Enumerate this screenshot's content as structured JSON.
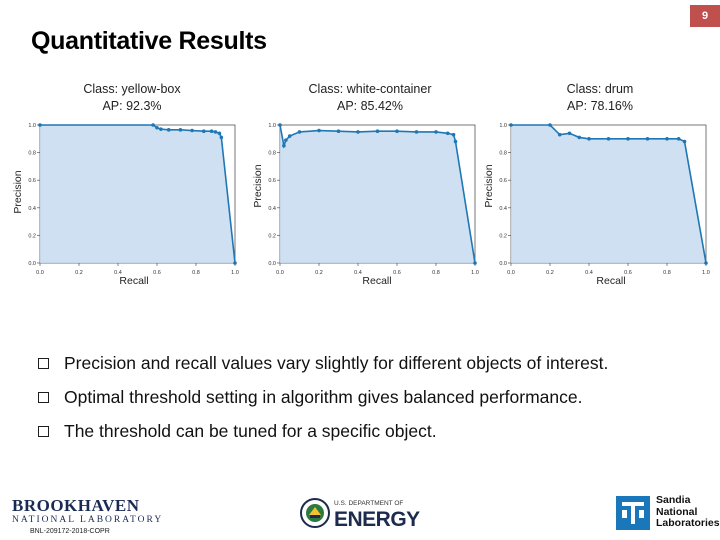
{
  "page_number": "9",
  "title": "Quantitative Results",
  "chart_data": [
    {
      "type": "area",
      "title_line1": "Class: yellow-box",
      "title_line2": "AP: 92.3%",
      "xlabel": "Recall",
      "ylabel": "Precision",
      "xlim": [
        0,
        1
      ],
      "ylim": [
        0,
        1
      ],
      "xticks": [
        "0.0",
        "0.2",
        "0.4",
        "0.6",
        "0.8",
        "1.0"
      ],
      "yticks": [
        "0.0",
        "0.2",
        "0.4",
        "0.6",
        "0.8",
        "1.0"
      ],
      "x": [
        0.0,
        0.58,
        0.6,
        0.62,
        0.66,
        0.72,
        0.78,
        0.84,
        0.88,
        0.9,
        0.92,
        0.93,
        1.0
      ],
      "y": [
        1.0,
        1.0,
        0.98,
        0.97,
        0.965,
        0.965,
        0.96,
        0.955,
        0.955,
        0.95,
        0.94,
        0.91,
        0.0
      ]
    },
    {
      "type": "area",
      "title_line1": "Class: white-container",
      "title_line2": "AP: 85.42%",
      "xlabel": "Recall",
      "ylabel": "Precision",
      "xlim": [
        0,
        1
      ],
      "ylim": [
        0,
        1
      ],
      "xticks": [
        "0.0",
        "0.2",
        "0.4",
        "0.6",
        "0.8",
        "1.0"
      ],
      "yticks": [
        "0.0",
        "0.2",
        "0.4",
        "0.6",
        "0.8",
        "1.0"
      ],
      "x": [
        0.0,
        0.02,
        0.03,
        0.05,
        0.1,
        0.2,
        0.3,
        0.4,
        0.5,
        0.6,
        0.7,
        0.8,
        0.86,
        0.89,
        0.9,
        1.0
      ],
      "y": [
        1.0,
        0.85,
        0.89,
        0.92,
        0.95,
        0.96,
        0.955,
        0.95,
        0.955,
        0.955,
        0.95,
        0.95,
        0.94,
        0.93,
        0.88,
        0.0
      ]
    },
    {
      "type": "area",
      "title_line1": "Class: drum",
      "title_line2": "AP: 78.16%",
      "xlabel": "Recall",
      "ylabel": "Precision",
      "xlim": [
        0,
        1
      ],
      "ylim": [
        0,
        1
      ],
      "xticks": [
        "0.0",
        "0.2",
        "0.4",
        "0.6",
        "0.8",
        "1.0"
      ],
      "yticks": [
        "0.0",
        "0.2",
        "0.4",
        "0.6",
        "0.8",
        "1.0"
      ],
      "x": [
        0.0,
        0.2,
        0.25,
        0.3,
        0.35,
        0.4,
        0.5,
        0.6,
        0.7,
        0.8,
        0.86,
        0.89,
        1.0
      ],
      "y": [
        1.0,
        1.0,
        0.93,
        0.94,
        0.91,
        0.9,
        0.9,
        0.9,
        0.9,
        0.9,
        0.9,
        0.88,
        0.0
      ]
    }
  ],
  "bullets": [
    "Precision and recall values vary slightly for different objects of interest.",
    "Optimal threshold setting in algorithm gives balanced performance.",
    "The threshold can be tuned for a specific object."
  ],
  "footer": {
    "bnl_name": "BROOKHAVEN",
    "bnl_sub": "NATIONAL LABORATORY",
    "bnl_code": "BNL-209172-2018-COPR",
    "doe_top": "U.S. DEPARTMENT OF",
    "doe_word": "ENERGY",
    "sandia_lines": [
      "Sandia",
      "National",
      "Laboratories"
    ]
  },
  "colors": {
    "page_badge": "#c0504d",
    "curve": "#1f77b4",
    "fill": "#c6dbef"
  }
}
